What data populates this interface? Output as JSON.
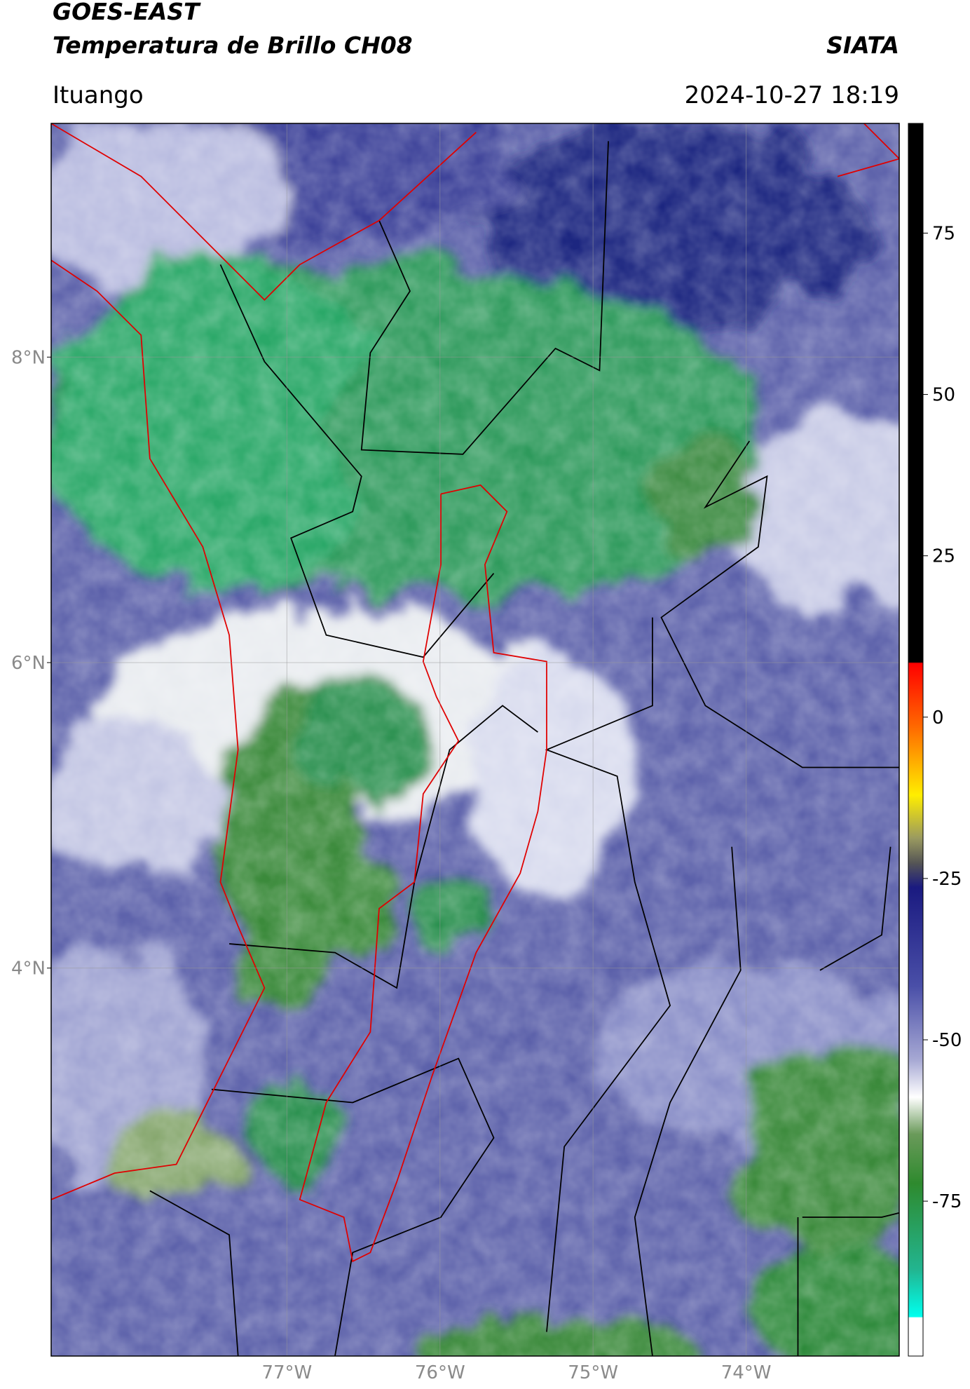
{
  "header": {
    "title_line1": "GOES-EAST",
    "title_line2": "Temperatura de Brillo CH08",
    "institution": "SIATA",
    "location": "Ituango",
    "datetime": "2024-10-27 18:19"
  },
  "map": {
    "xlim": [
      -78.54,
      -73.0
    ],
    "ylim": [
      1.46,
      9.53
    ],
    "xticks": [
      {
        "value": -77,
        "label": "77°W"
      },
      {
        "value": -76,
        "label": "76°W"
      },
      {
        "value": -75,
        "label": "75°W"
      },
      {
        "value": -74,
        "label": "74°W"
      }
    ],
    "yticks": [
      {
        "value": 8,
        "label": "8°N"
      },
      {
        "value": 6,
        "label": "6°N"
      },
      {
        "value": 4,
        "label": "4°N"
      }
    ],
    "grid": true
  },
  "colorbar": {
    "lim": [
      -99,
      92
    ],
    "ticks": [
      75,
      50,
      25,
      0,
      -25,
      -50,
      -75
    ]
  }
}
